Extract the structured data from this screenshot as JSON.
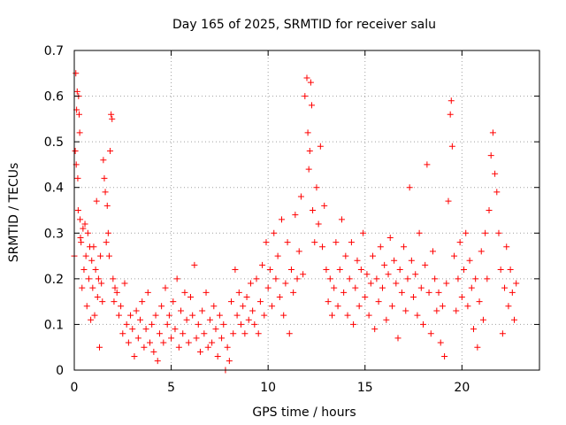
{
  "chart_data": {
    "type": "scatter",
    "title": "Day 165 of 2025, SRMTID for receiver salu",
    "xlabel": "GPS time / hours",
    "ylabel": "SRMTID / TECUs",
    "xlim": [
      0,
      24
    ],
    "ylim": [
      0,
      0.7
    ],
    "x_ticks": [
      0,
      5,
      10,
      15,
      20
    ],
    "x_tick_labels": [
      "0",
      "5",
      "10",
      "15",
      "20"
    ],
    "y_ticks": [
      0,
      0.1,
      0.2,
      0.3,
      0.4,
      0.5,
      0.6,
      0.7
    ],
    "y_tick_labels": [
      "0",
      "0.1",
      "0.2",
      "0.3",
      "0.4",
      "0.5",
      "0.6",
      "0.7"
    ],
    "grid": true,
    "marker": "plus",
    "color": "#ff0000",
    "series": [
      {
        "name": "SRMTID",
        "points": [
          [
            0.0,
            0.25
          ],
          [
            0.05,
            0.48
          ],
          [
            0.08,
            0.65
          ],
          [
            0.1,
            0.45
          ],
          [
            0.12,
            0.57
          ],
          [
            0.15,
            0.61
          ],
          [
            0.18,
            0.42
          ],
          [
            0.2,
            0.35
          ],
          [
            0.22,
            0.6
          ],
          [
            0.25,
            0.56
          ],
          [
            0.28,
            0.52
          ],
          [
            0.3,
            0.33
          ],
          [
            0.32,
            0.29
          ],
          [
            0.35,
            0.28
          ],
          [
            0.4,
            0.18
          ],
          [
            0.45,
            0.31
          ],
          [
            0.5,
            0.22
          ],
          [
            0.55,
            0.32
          ],
          [
            0.6,
            0.25
          ],
          [
            0.65,
            0.14
          ],
          [
            0.7,
            0.3
          ],
          [
            0.75,
            0.2
          ],
          [
            0.8,
            0.27
          ],
          [
            0.85,
            0.11
          ],
          [
            0.9,
            0.24
          ],
          [
            0.95,
            0.18
          ],
          [
            1.0,
            0.27
          ],
          [
            1.05,
            0.12
          ],
          [
            1.1,
            0.22
          ],
          [
            1.15,
            0.37
          ],
          [
            1.2,
            0.16
          ],
          [
            1.25,
            0.2
          ],
          [
            1.3,
            0.05
          ],
          [
            1.35,
            0.25
          ],
          [
            1.4,
            0.19
          ],
          [
            1.45,
            0.15
          ],
          [
            1.5,
            0.46
          ],
          [
            1.55,
            0.42
          ],
          [
            1.6,
            0.39
          ],
          [
            1.65,
            0.28
          ],
          [
            1.7,
            0.36
          ],
          [
            1.75,
            0.3
          ],
          [
            1.8,
            0.25
          ],
          [
            1.85,
            0.48
          ],
          [
            1.9,
            0.56
          ],
          [
            1.95,
            0.55
          ],
          [
            2.0,
            0.2
          ],
          [
            2.05,
            0.15
          ],
          [
            2.1,
            0.18
          ],
          [
            2.2,
            0.17
          ],
          [
            2.3,
            0.12
          ],
          [
            2.4,
            0.14
          ],
          [
            2.5,
            0.08
          ],
          [
            2.6,
            0.19
          ],
          [
            2.7,
            0.1
          ],
          [
            2.8,
            0.06
          ],
          [
            2.9,
            0.12
          ],
          [
            3.0,
            0.09
          ],
          [
            3.1,
            0.03
          ],
          [
            3.2,
            0.13
          ],
          [
            3.3,
            0.07
          ],
          [
            3.4,
            0.11
          ],
          [
            3.5,
            0.15
          ],
          [
            3.6,
            0.05
          ],
          [
            3.7,
            0.09
          ],
          [
            3.8,
            0.17
          ],
          [
            3.9,
            0.06
          ],
          [
            4.0,
            0.1
          ],
          [
            4.1,
            0.04
          ],
          [
            4.2,
            0.12
          ],
          [
            4.3,
            0.02
          ],
          [
            4.4,
            0.08
          ],
          [
            4.5,
            0.14
          ],
          [
            4.6,
            0.06
          ],
          [
            4.7,
            0.18
          ],
          [
            4.8,
            0.1
          ],
          [
            4.9,
            0.12
          ],
          [
            5.0,
            0.07
          ],
          [
            5.1,
            0.15
          ],
          [
            5.2,
            0.09
          ],
          [
            5.3,
            0.2
          ],
          [
            5.4,
            0.05
          ],
          [
            5.5,
            0.13
          ],
          [
            5.6,
            0.08
          ],
          [
            5.7,
            0.17
          ],
          [
            5.8,
            0.11
          ],
          [
            5.9,
            0.06
          ],
          [
            6.0,
            0.16
          ],
          [
            6.1,
            0.12
          ],
          [
            6.2,
            0.23
          ],
          [
            6.3,
            0.07
          ],
          [
            6.4,
            0.1
          ],
          [
            6.5,
            0.04
          ],
          [
            6.6,
            0.13
          ],
          [
            6.7,
            0.08
          ],
          [
            6.8,
            0.17
          ],
          [
            6.9,
            0.05
          ],
          [
            7.0,
            0.11
          ],
          [
            7.1,
            0.06
          ],
          [
            7.2,
            0.14
          ],
          [
            7.3,
            0.09
          ],
          [
            7.4,
            0.03
          ],
          [
            7.5,
            0.12
          ],
          [
            7.6,
            0.07
          ],
          [
            7.7,
            0.1
          ],
          [
            7.8,
            0.0
          ],
          [
            7.9,
            0.05
          ],
          [
            8.0,
            0.02
          ],
          [
            8.1,
            0.15
          ],
          [
            8.2,
            0.08
          ],
          [
            8.3,
            0.22
          ],
          [
            8.4,
            0.12
          ],
          [
            8.5,
            0.17
          ],
          [
            8.6,
            0.1
          ],
          [
            8.7,
            0.14
          ],
          [
            8.8,
            0.08
          ],
          [
            8.9,
            0.16
          ],
          [
            9.0,
            0.11
          ],
          [
            9.1,
            0.19
          ],
          [
            9.2,
            0.13
          ],
          [
            9.3,
            0.1
          ],
          [
            9.4,
            0.2
          ],
          [
            9.5,
            0.08
          ],
          [
            9.6,
            0.15
          ],
          [
            9.7,
            0.23
          ],
          [
            9.8,
            0.12
          ],
          [
            9.9,
            0.28
          ],
          [
            10.0,
            0.18
          ],
          [
            10.1,
            0.22
          ],
          [
            10.2,
            0.14
          ],
          [
            10.3,
            0.3
          ],
          [
            10.4,
            0.2
          ],
          [
            10.5,
            0.25
          ],
          [
            10.6,
            0.16
          ],
          [
            10.7,
            0.33
          ],
          [
            10.8,
            0.12
          ],
          [
            10.9,
            0.19
          ],
          [
            11.0,
            0.28
          ],
          [
            11.1,
            0.08
          ],
          [
            11.2,
            0.22
          ],
          [
            11.3,
            0.17
          ],
          [
            11.4,
            0.34
          ],
          [
            11.5,
            0.2
          ],
          [
            11.6,
            0.26
          ],
          [
            11.7,
            0.38
          ],
          [
            11.8,
            0.21
          ],
          [
            11.9,
            0.6
          ],
          [
            12.0,
            0.64
          ],
          [
            12.05,
            0.52
          ],
          [
            12.1,
            0.44
          ],
          [
            12.15,
            0.48
          ],
          [
            12.2,
            0.63
          ],
          [
            12.25,
            0.58
          ],
          [
            12.3,
            0.35
          ],
          [
            12.4,
            0.28
          ],
          [
            12.5,
            0.4
          ],
          [
            12.6,
            0.32
          ],
          [
            12.7,
            0.49
          ],
          [
            12.8,
            0.27
          ],
          [
            12.9,
            0.36
          ],
          [
            13.0,
            0.22
          ],
          [
            13.1,
            0.15
          ],
          [
            13.2,
            0.2
          ],
          [
            13.3,
            0.12
          ],
          [
            13.4,
            0.18
          ],
          [
            13.5,
            0.28
          ],
          [
            13.6,
            0.14
          ],
          [
            13.7,
            0.22
          ],
          [
            13.8,
            0.33
          ],
          [
            13.9,
            0.17
          ],
          [
            14.0,
            0.25
          ],
          [
            14.1,
            0.12
          ],
          [
            14.2,
            0.2
          ],
          [
            14.3,
            0.28
          ],
          [
            14.4,
            0.1
          ],
          [
            14.5,
            0.18
          ],
          [
            14.6,
            0.24
          ],
          [
            14.7,
            0.14
          ],
          [
            14.8,
            0.22
          ],
          [
            14.9,
            0.3
          ],
          [
            15.0,
            0.16
          ],
          [
            15.1,
            0.21
          ],
          [
            15.2,
            0.12
          ],
          [
            15.3,
            0.19
          ],
          [
            15.4,
            0.25
          ],
          [
            15.5,
            0.09
          ],
          [
            15.6,
            0.2
          ],
          [
            15.7,
            0.15
          ],
          [
            15.8,
            0.27
          ],
          [
            15.9,
            0.18
          ],
          [
            16.0,
            0.23
          ],
          [
            16.1,
            0.11
          ],
          [
            16.2,
            0.21
          ],
          [
            16.3,
            0.29
          ],
          [
            16.4,
            0.14
          ],
          [
            16.5,
            0.24
          ],
          [
            16.6,
            0.19
          ],
          [
            16.7,
            0.07
          ],
          [
            16.8,
            0.22
          ],
          [
            16.9,
            0.17
          ],
          [
            17.0,
            0.27
          ],
          [
            17.1,
            0.13
          ],
          [
            17.2,
            0.2
          ],
          [
            17.3,
            0.4
          ],
          [
            17.4,
            0.24
          ],
          [
            17.5,
            0.16
          ],
          [
            17.6,
            0.21
          ],
          [
            17.7,
            0.12
          ],
          [
            17.8,
            0.3
          ],
          [
            17.9,
            0.18
          ],
          [
            18.0,
            0.1
          ],
          [
            18.1,
            0.23
          ],
          [
            18.2,
            0.45
          ],
          [
            18.3,
            0.17
          ],
          [
            18.4,
            0.08
          ],
          [
            18.5,
            0.26
          ],
          [
            18.6,
            0.2
          ],
          [
            18.7,
            0.13
          ],
          [
            18.8,
            0.17
          ],
          [
            18.9,
            0.06
          ],
          [
            19.0,
            0.14
          ],
          [
            19.1,
            0.03
          ],
          [
            19.2,
            0.19
          ],
          [
            19.3,
            0.37
          ],
          [
            19.4,
            0.56
          ],
          [
            19.45,
            0.59
          ],
          [
            19.5,
            0.49
          ],
          [
            19.6,
            0.25
          ],
          [
            19.7,
            0.13
          ],
          [
            19.8,
            0.2
          ],
          [
            19.9,
            0.28
          ],
          [
            20.0,
            0.16
          ],
          [
            20.1,
            0.22
          ],
          [
            20.2,
            0.3
          ],
          [
            20.3,
            0.14
          ],
          [
            20.4,
            0.24
          ],
          [
            20.5,
            0.18
          ],
          [
            20.6,
            0.09
          ],
          [
            20.7,
            0.2
          ],
          [
            20.8,
            0.05
          ],
          [
            20.9,
            0.15
          ],
          [
            21.0,
            0.26
          ],
          [
            21.1,
            0.11
          ],
          [
            21.2,
            0.3
          ],
          [
            21.3,
            0.2
          ],
          [
            21.4,
            0.35
          ],
          [
            21.5,
            0.47
          ],
          [
            21.6,
            0.52
          ],
          [
            21.7,
            0.43
          ],
          [
            21.8,
            0.39
          ],
          [
            21.9,
            0.3
          ],
          [
            22.0,
            0.22
          ],
          [
            22.1,
            0.08
          ],
          [
            22.2,
            0.18
          ],
          [
            22.3,
            0.27
          ],
          [
            22.4,
            0.14
          ],
          [
            22.5,
            0.22
          ],
          [
            22.6,
            0.17
          ],
          [
            22.7,
            0.11
          ],
          [
            22.8,
            0.19
          ]
        ]
      }
    ]
  }
}
